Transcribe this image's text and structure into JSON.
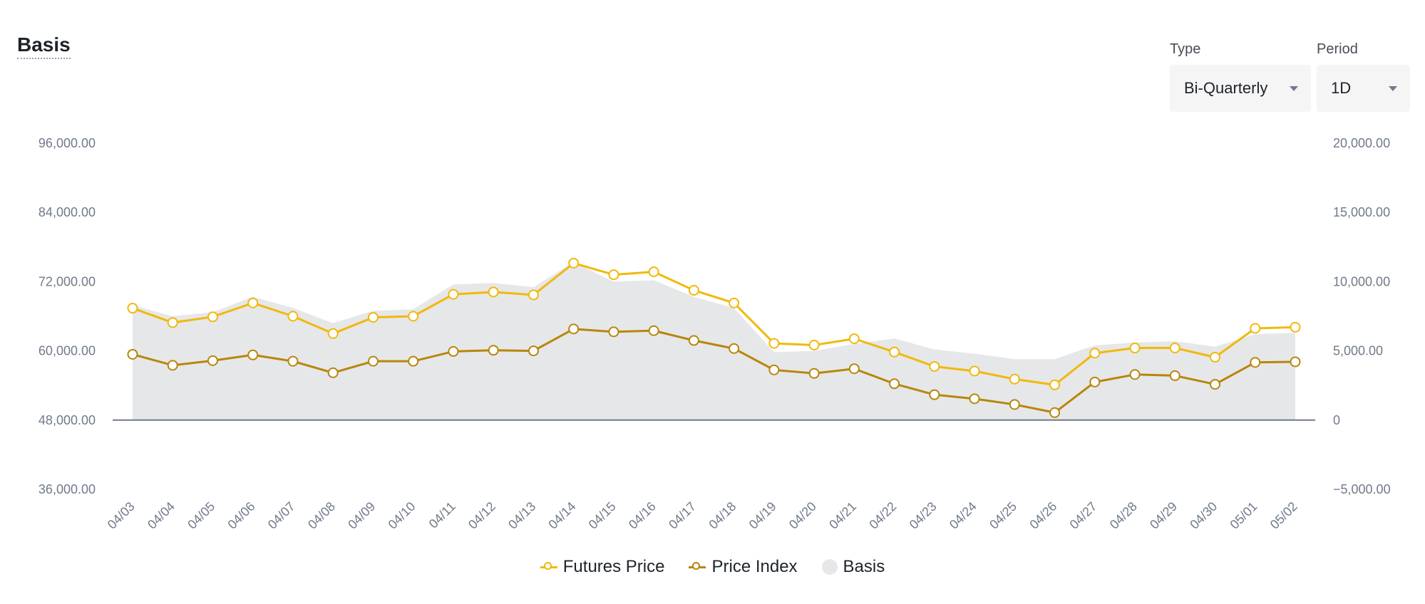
{
  "header": {
    "title": "Basis"
  },
  "controls": {
    "type": {
      "label": "Type",
      "value": "Bi-Quarterly"
    },
    "period": {
      "label": "Period",
      "value": "1D"
    }
  },
  "legend": [
    {
      "name": "Futures Price",
      "marker": "line-dot",
      "color": "#f0b90b"
    },
    {
      "name": "Price Index",
      "marker": "line-dot",
      "color": "#b8860b"
    },
    {
      "name": "Basis",
      "marker": "area",
      "color": "#e6e7e9"
    }
  ],
  "chart_data": {
    "type": "line",
    "title": "Basis",
    "categories": [
      "04/03",
      "04/04",
      "04/05",
      "04/06",
      "04/07",
      "04/08",
      "04/09",
      "04/10",
      "04/11",
      "04/12",
      "04/13",
      "04/14",
      "04/15",
      "04/16",
      "04/17",
      "04/18",
      "04/19",
      "04/20",
      "04/21",
      "04/22",
      "04/23",
      "04/24",
      "04/25",
      "04/26",
      "04/27",
      "04/28",
      "04/29",
      "04/30",
      "05/01",
      "05/02"
    ],
    "y_left": {
      "min": 36000,
      "max": 96000,
      "ticks": [
        "96,000.00",
        "84,000.00",
        "72,000.00",
        "60,000.00",
        "48,000.00",
        "36,000.00"
      ]
    },
    "y_right": {
      "min": -5000,
      "max": 20000,
      "ticks": [
        "20,000.00",
        "15,000.00",
        "10,000.00",
        "5,000.00",
        "0",
        "−5,000.00"
      ]
    },
    "series": [
      {
        "name": "Futures Price",
        "axis": "left",
        "type": "line",
        "color": "#f0b90b",
        "values": [
          67400,
          64900,
          65900,
          68300,
          66000,
          63000,
          65800,
          66000,
          69800,
          70200,
          69700,
          75200,
          73200,
          73700,
          70500,
          68300,
          61300,
          61000,
          62100,
          59800,
          57300,
          56500,
          55100,
          54100,
          59600,
          60500,
          60500,
          58900,
          63900,
          64100
        ]
      },
      {
        "name": "Price Index",
        "axis": "left",
        "type": "line",
        "color": "#b8860b",
        "values": [
          59400,
          57500,
          58300,
          59300,
          58200,
          56200,
          58200,
          58200,
          59900,
          60100,
          60000,
          63800,
          63300,
          63500,
          61800,
          60400,
          56700,
          56100,
          56900,
          54300,
          52400,
          51700,
          50700,
          49300,
          54600,
          55900,
          55700,
          54200,
          58000,
          58100
        ]
      },
      {
        "name": "Basis",
        "axis": "right",
        "type": "area",
        "color": "#e6e7e9",
        "values": [
          8300,
          7500,
          7800,
          8900,
          8100,
          7000,
          7900,
          8000,
          9800,
          9900,
          9600,
          11400,
          10000,
          10100,
          8900,
          8100,
          4900,
          5000,
          5500,
          5900,
          5100,
          4800,
          4400,
          4400,
          5400,
          5600,
          5700,
          5300,
          6200,
          6300
        ]
      }
    ],
    "grid": false,
    "legend_position": "bottom-center"
  }
}
